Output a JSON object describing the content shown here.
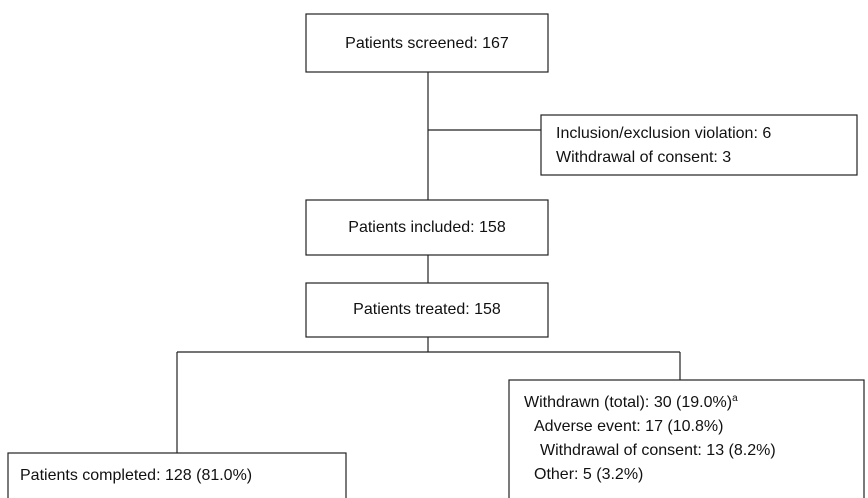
{
  "nodes": [
    {
      "label": "Patients screened: 167"
    },
    {
      "lines": [
        "Inclusion/exclusion violation: 6",
        "Withdrawal of consent: 3"
      ]
    },
    {
      "label": "Patients included: 158"
    },
    {
      "label": "Patients treated: 158"
    },
    {
      "label": "Patients completed: 128 (81.0%)"
    },
    {
      "lines": [
        "Withdrawn (total): 30 (19.0%)",
        "Adverse event: 17 (10.8%)",
        "Withdrawal of consent: 13 (8.2%)",
        "Other: 5 (3.2%)"
      ],
      "footnote_marker": "a"
    }
  ]
}
